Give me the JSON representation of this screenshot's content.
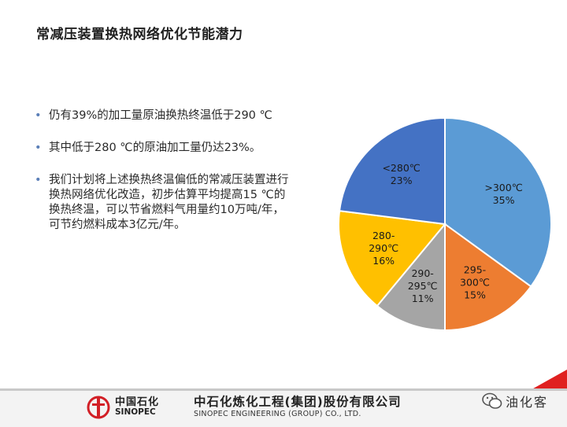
{
  "title": "常减压装置换热网络优化节能潜力",
  "bullets": [
    "仍有39%的加工量原油换热终温低于290 ℃",
    "其中低于280 ℃的原油加工量仍达23%。",
    "我们计划将上述换热终温偏低的常减压装置进行换热网络优化改造，初步估算平均提高15 ℃的换热终温，可以节省燃料气用量约10万吨/年，可节约燃料成本3亿元/年。"
  ],
  "bullet_symbol": "•",
  "chart_data": {
    "type": "pie",
    "start_angle_deg": 0,
    "direction": "clockwise",
    "slices": [
      {
        "label_lines": [
          ">300℃",
          "35%"
        ],
        "value": 35,
        "color": "#5b9bd5"
      },
      {
        "label_lines": [
          "295-",
          "300℃",
          "15%"
        ],
        "value": 15,
        "color": "#ed7d31"
      },
      {
        "label_lines": [
          "290-",
          "295℃",
          "11%"
        ],
        "value": 11,
        "color": "#a5a5a5"
      },
      {
        "label_lines": [
          "280-",
          "290℃",
          "16%"
        ],
        "value": 16,
        "color": "#ffc000"
      },
      {
        "label_lines": [
          "<280℃",
          "23%"
        ],
        "value": 23,
        "color": "#4472c4"
      }
    ]
  },
  "footer": {
    "sinopec_cn": "中国石化",
    "sinopec_en": "SINOPEC",
    "company_cn": "中石化炼化工程(集团)股份有限公司",
    "company_en": "SINOPEC ENGINEERING (GROUP) CO., LTD.",
    "watermark": "油化客",
    "accent_color": "#e02020"
  }
}
